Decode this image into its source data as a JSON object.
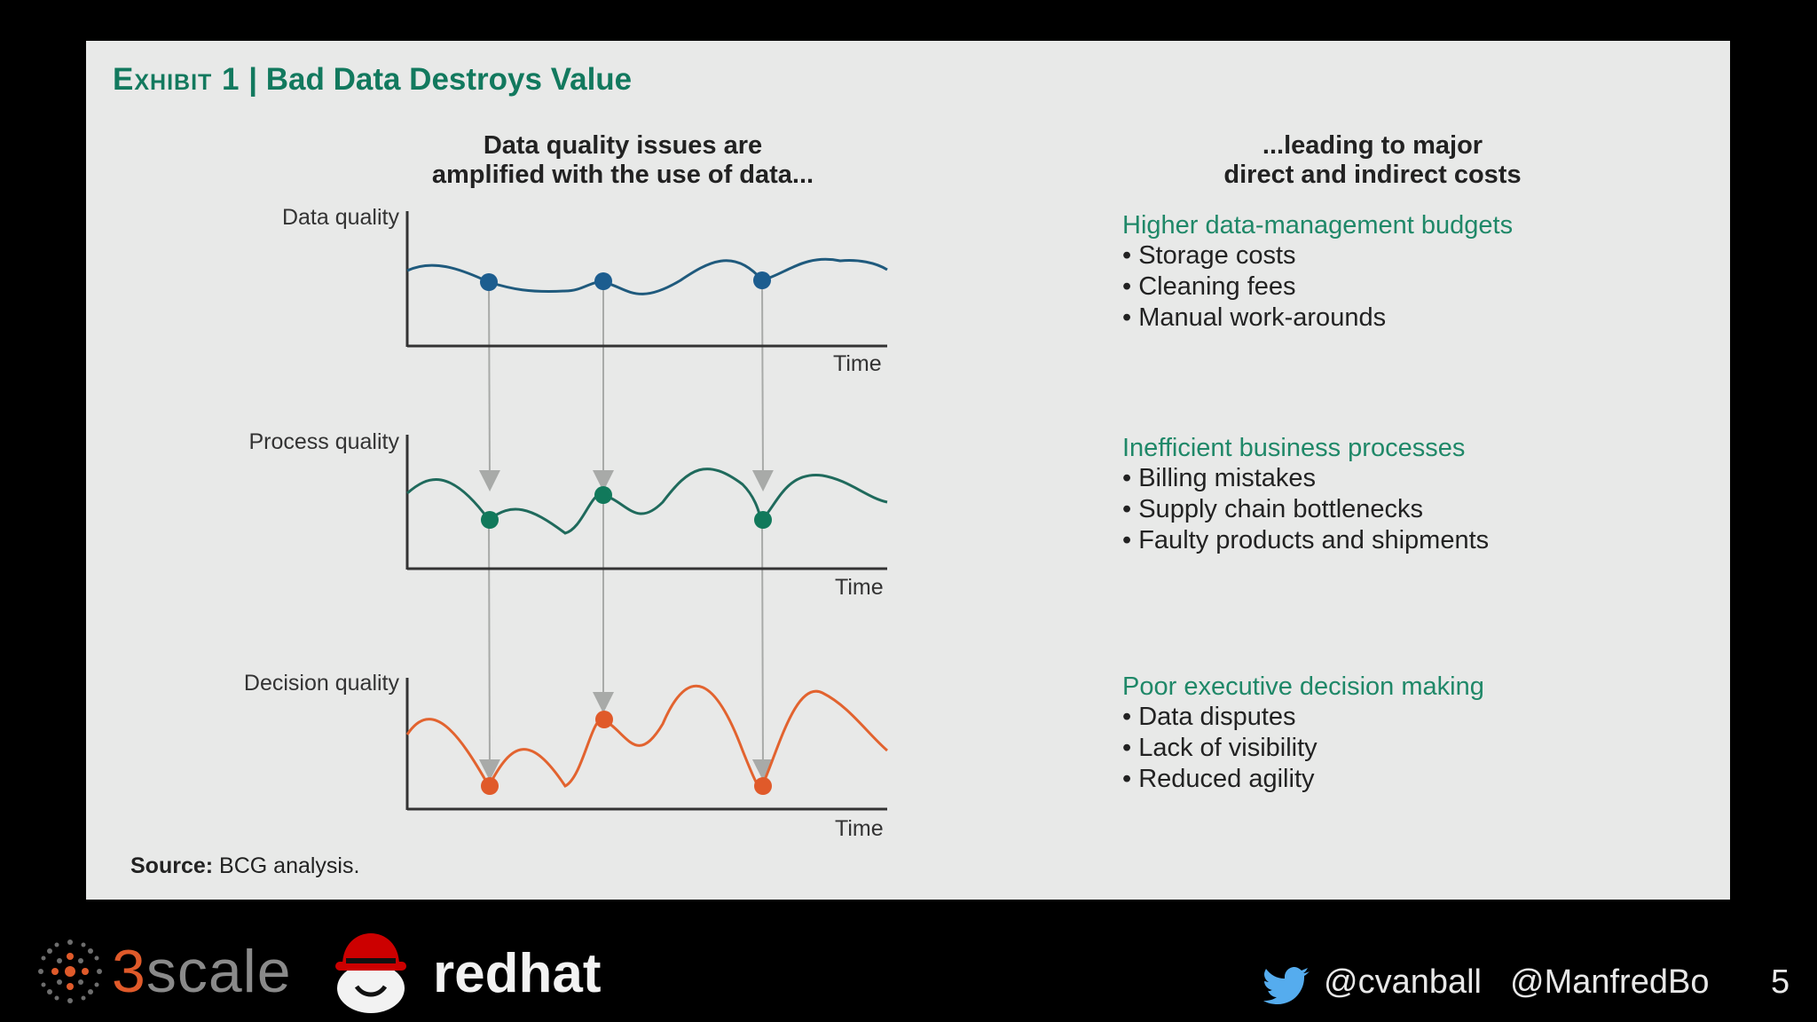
{
  "slide": {
    "exhibit_label": "Exhibit 1",
    "title": "Bad Data Destroys Value",
    "left_heading_line1": "Data quality issues are",
    "left_heading_line2": "amplified with the use of data...",
    "right_heading_line1": "...leading to major",
    "right_heading_line2": "direct and indirect costs",
    "charts": [
      {
        "label": "Data quality",
        "axis": "Time",
        "dot_color": "#1c5d8f",
        "line_color": "#1f5a7d"
      },
      {
        "label": "Process quality",
        "axis": "Time",
        "dot_color": "#11795b",
        "line_color": "#1f6a5c"
      },
      {
        "label": "Decision quality",
        "axis": "Time",
        "dot_color": "#e05a2a",
        "line_color": "#e2632f"
      }
    ],
    "sections": [
      {
        "heading": "Higher data-management budgets",
        "items": [
          "Storage costs",
          "Cleaning fees",
          "Manual work-arounds"
        ]
      },
      {
        "heading": "Inefficient business processes",
        "items": [
          "Billing mistakes",
          "Supply chain bottlenecks",
          "Faulty products and shipments"
        ]
      },
      {
        "heading": "Poor executive decision making",
        "items": [
          "Data disputes",
          "Lack of visibility",
          "Reduced agility"
        ]
      }
    ],
    "source_label": "Source:",
    "source_text": "BCG analysis."
  },
  "footer": {
    "logo1": "3scale",
    "logo2": "redhat",
    "handle1": "@cvanball",
    "handle2": "@ManfredBo",
    "page_number": "5",
    "twitter_icon": "twitter-bird-icon"
  }
}
